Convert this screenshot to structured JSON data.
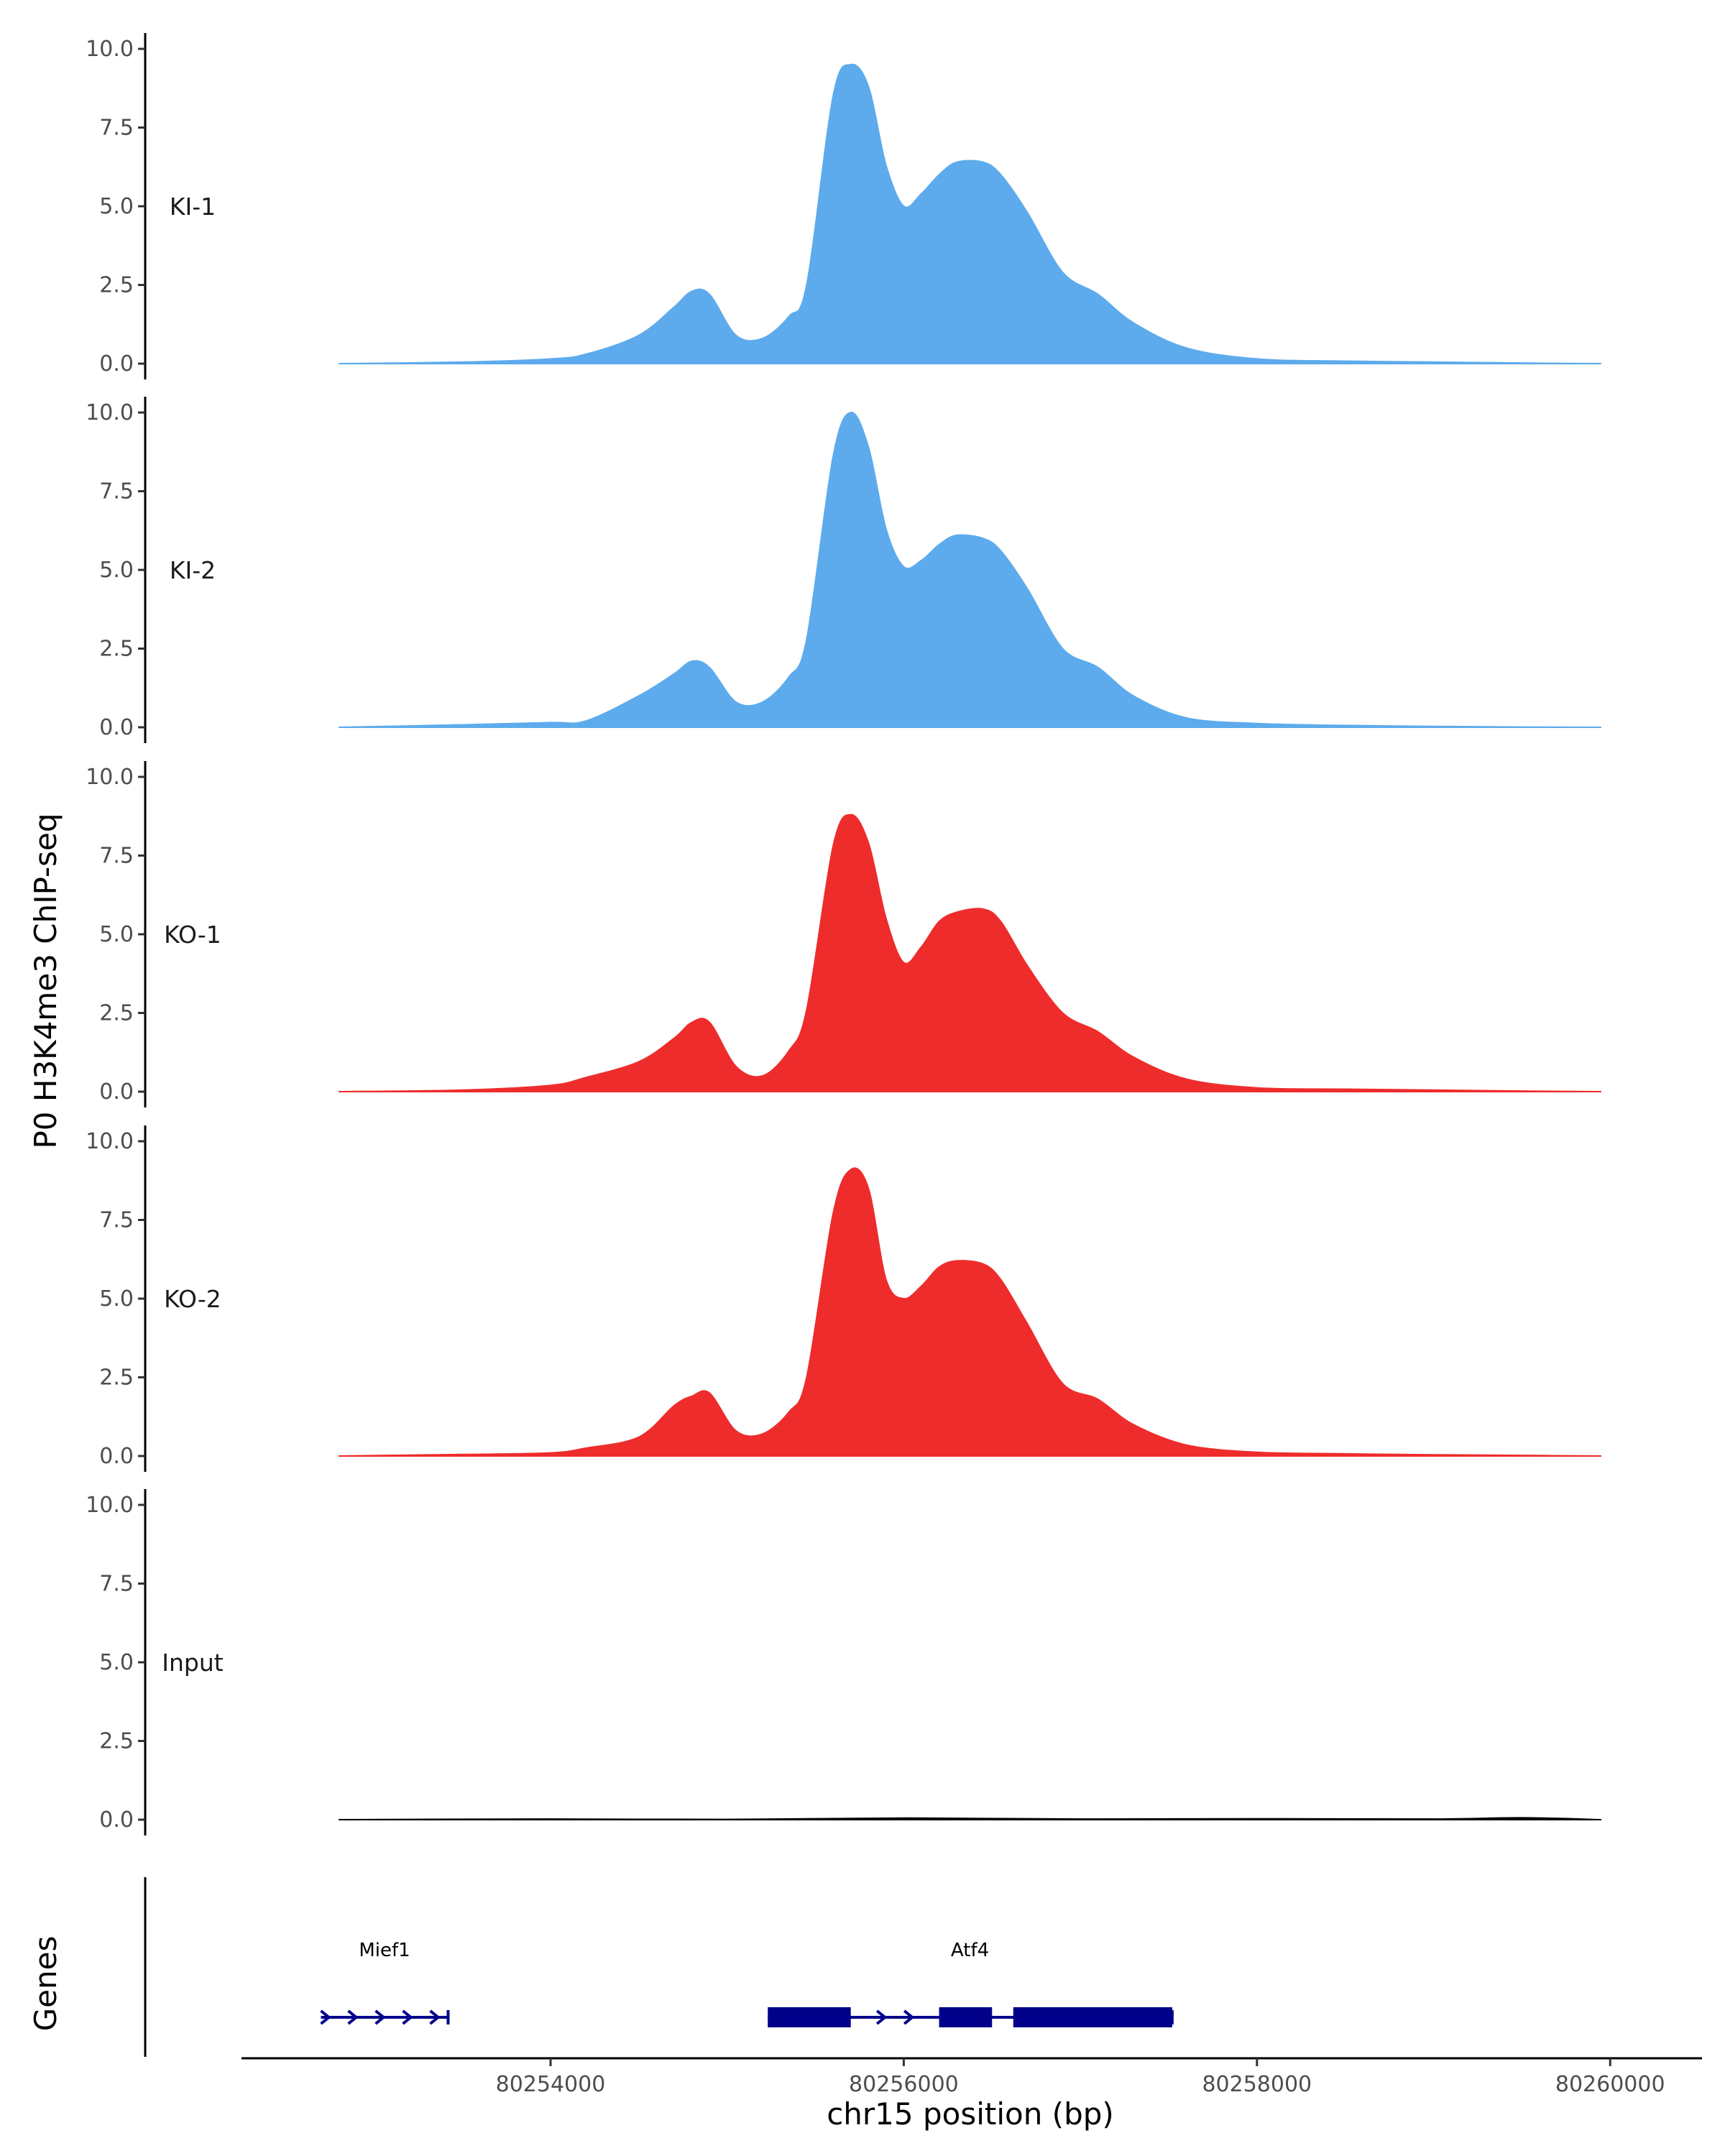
{
  "chart_data": {
    "type": "area",
    "ylabel": "P0 H3K4me3 ChIP-seq",
    "xlabel": "chr15 position (bp)",
    "ylim": [
      0,
      10
    ],
    "yticks": [
      0,
      2.5,
      5,
      7.5,
      10
    ],
    "ytick_labels": [
      "0.0",
      "2.5",
      "5.0",
      "7.5",
      "10.0"
    ],
    "xlim": [
      80252250,
      80260520
    ],
    "data_range": [
      80252800,
      80259950
    ],
    "xticks": [
      80254000,
      80256000,
      80258000,
      80260000
    ],
    "xtick_labels": [
      "80254000",
      "80256000",
      "80258000",
      "80260000"
    ],
    "series": [
      {
        "name": "KI-1",
        "color": "#5DABEC",
        "x": [
          80252800,
          80253500,
          80254000,
          80254200,
          80254500,
          80254700,
          80254800,
          80254900,
          80255050,
          80255200,
          80255350,
          80255450,
          80255600,
          80255700,
          80255800,
          80255900,
          80256000,
          80256100,
          80256200,
          80256300,
          80256450,
          80256550,
          80256700,
          80256900,
          80257100,
          80257300,
          80257600,
          80258000,
          80258500,
          80259000,
          80259500,
          80259950
        ],
        "y": [
          0,
          0.05,
          0.15,
          0.3,
          0.9,
          1.8,
          2.3,
          2.2,
          0.9,
          0.8,
          1.5,
          2.5,
          8.5,
          9.5,
          8.8,
          6.3,
          5.0,
          5.4,
          6.0,
          6.4,
          6.4,
          6.0,
          4.8,
          2.9,
          2.2,
          1.3,
          0.5,
          0.15,
          0.08,
          0.05,
          0.02,
          0
        ]
      },
      {
        "name": "KI-2",
        "color": "#5DABEC",
        "x": [
          80252800,
          80253500,
          80254000,
          80254200,
          80254500,
          80254700,
          80254800,
          80254900,
          80255050,
          80255200,
          80255350,
          80255450,
          80255600,
          80255700,
          80255800,
          80255900,
          80256000,
          80256100,
          80256200,
          80256300,
          80256450,
          80256550,
          80256700,
          80256900,
          80257100,
          80257300,
          80257600,
          80258000,
          80258500,
          80259000,
          80259500,
          80259950
        ],
        "y": [
          0,
          0.08,
          0.15,
          0.2,
          1.0,
          1.7,
          2.1,
          1.9,
          0.8,
          0.8,
          1.6,
          2.8,
          8.6,
          10.0,
          8.9,
          6.3,
          5.1,
          5.3,
          5.8,
          6.1,
          6.0,
          5.6,
          4.4,
          2.5,
          1.9,
          1.0,
          0.3,
          0.12,
          0.06,
          0.03,
          0.01,
          0
        ]
      },
      {
        "name": "KO-1",
        "color": "#EE2C2C",
        "x": [
          80252800,
          80253500,
          80254000,
          80254200,
          80254500,
          80254700,
          80254800,
          80254900,
          80255050,
          80255200,
          80255350,
          80255450,
          80255600,
          80255700,
          80255800,
          80255900,
          80256000,
          80256100,
          80256200,
          80256300,
          80256450,
          80256550,
          80256700,
          80256900,
          80257100,
          80257300,
          80257600,
          80258000,
          80258500,
          80259000,
          80259500,
          80259950
        ],
        "y": [
          0,
          0.05,
          0.2,
          0.45,
          0.95,
          1.7,
          2.2,
          2.2,
          0.8,
          0.5,
          1.3,
          2.6,
          7.8,
          8.8,
          7.9,
          5.5,
          4.1,
          4.6,
          5.4,
          5.7,
          5.8,
          5.4,
          4.0,
          2.5,
          1.9,
          1.1,
          0.4,
          0.12,
          0.08,
          0.05,
          0.02,
          0
        ]
      },
      {
        "name": "KO-2",
        "color": "#EE2C2C",
        "x": [
          80252800,
          80253500,
          80254000,
          80254200,
          80254500,
          80254700,
          80254800,
          80254900,
          80255050,
          80255200,
          80255350,
          80255450,
          80255600,
          80255700,
          80255800,
          80255900,
          80256000,
          80256100,
          80256200,
          80256300,
          80256450,
          80256550,
          80256700,
          80256900,
          80257100,
          80257300,
          80257600,
          80258000,
          80258500,
          80259000,
          80259500,
          80259950
        ],
        "y": [
          0,
          0.05,
          0.1,
          0.25,
          0.6,
          1.6,
          1.9,
          2.0,
          0.8,
          0.7,
          1.4,
          2.5,
          7.7,
          9.1,
          8.5,
          5.6,
          5.0,
          5.4,
          6.0,
          6.2,
          6.1,
          5.6,
          4.2,
          2.3,
          1.8,
          1.0,
          0.35,
          0.12,
          0.07,
          0.04,
          0.02,
          0
        ]
      },
      {
        "name": "Input",
        "color": "#000000",
        "x": [
          80252800,
          80254000,
          80255000,
          80256000,
          80257000,
          80258000,
          80259000,
          80259500,
          80259950
        ],
        "y": [
          0,
          0.02,
          0.01,
          0.05,
          0.02,
          0.03,
          0.02,
          0.06,
          0
        ]
      }
    ],
    "genes": [
      {
        "name": "Mief1",
        "start": 80252700,
        "end": 80253420,
        "exons": []
      },
      {
        "name": "Atf4",
        "start": 80255230,
        "end": 80257520,
        "exons": [
          [
            80255230,
            80255700
          ],
          [
            80256200,
            80256500
          ],
          [
            80256620,
            80257520
          ]
        ]
      }
    ],
    "gene_track_label": "Genes",
    "gene_color": "#00008B"
  }
}
